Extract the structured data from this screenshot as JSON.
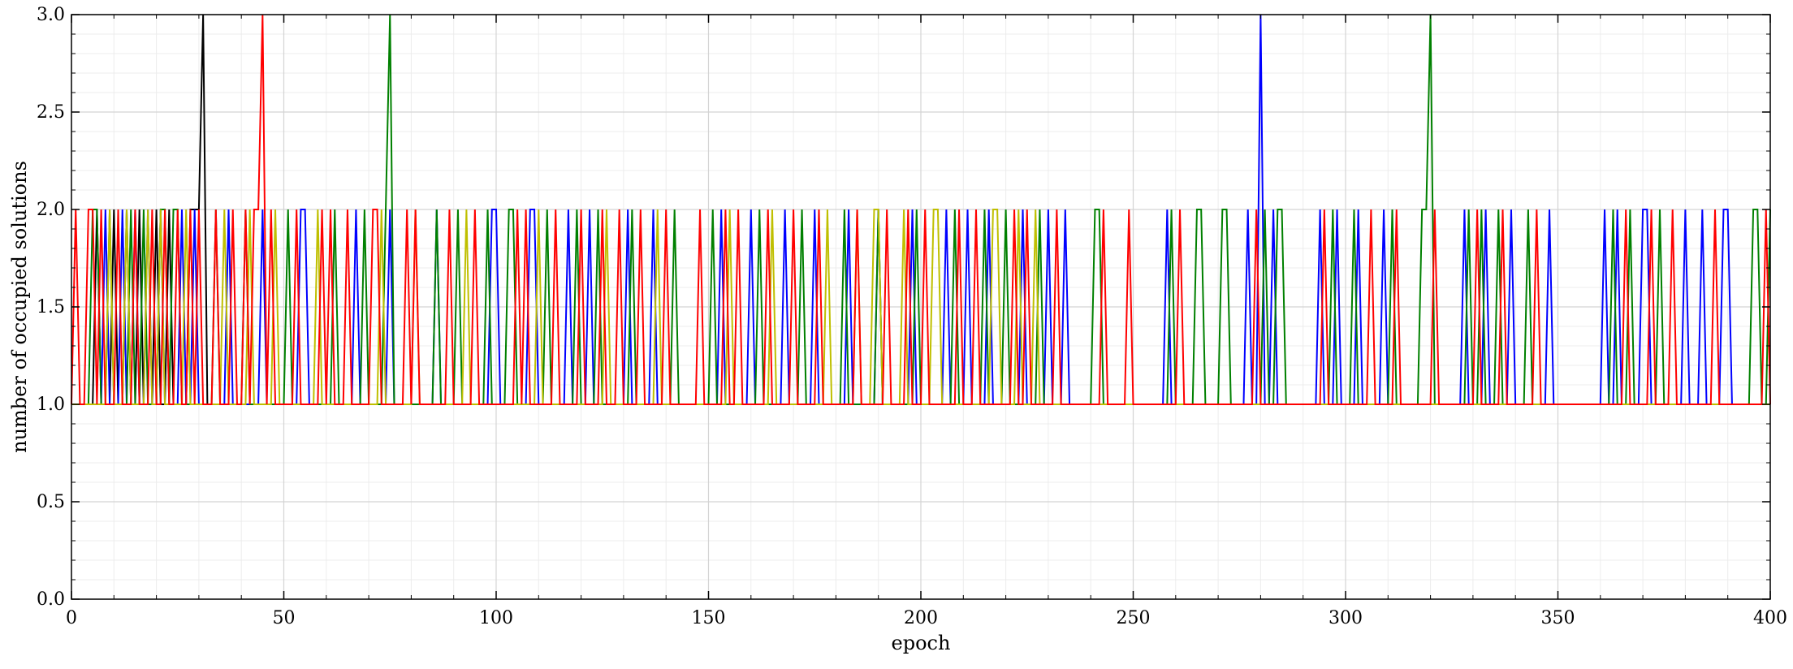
{
  "chart_data": {
    "type": "line",
    "title": "",
    "xlabel": "epoch",
    "ylabel": "number of occupied solutions",
    "xlim": [
      0,
      400
    ],
    "ylim": [
      0.0,
      3.0
    ],
    "grid": true,
    "x_ticks": [
      0,
      50,
      100,
      150,
      200,
      250,
      300,
      350,
      400
    ],
    "x_tick_labels": [
      "0",
      "50",
      "100",
      "150",
      "200",
      "250",
      "300",
      "350",
      "400"
    ],
    "y_ticks": [
      0.0,
      0.5,
      1.0,
      1.5,
      2.0,
      2.5,
      3.0
    ],
    "y_tick_labels": [
      "0.0",
      "0.5",
      "1.0",
      "1.5",
      "2.0",
      "2.5",
      "3.0"
    ],
    "series": [
      {
        "color": "#000000",
        "spans2": [
          [
            6,
            6
          ],
          [
            10,
            10
          ],
          [
            13,
            13
          ],
          [
            16,
            16
          ],
          [
            20,
            20
          ],
          [
            23,
            23
          ],
          [
            28,
            30
          ]
        ],
        "spans3": [
          [
            31,
            31
          ]
        ]
      },
      {
        "color": "#0000ff",
        "spans2": [
          [
            8,
            8
          ],
          [
            12,
            12
          ],
          [
            15,
            15
          ],
          [
            18,
            18
          ],
          [
            21,
            21
          ],
          [
            26,
            26
          ],
          [
            29,
            29
          ],
          [
            37,
            37
          ],
          [
            45,
            45
          ],
          [
            54,
            55
          ],
          [
            67,
            67
          ],
          [
            75,
            75
          ],
          [
            86,
            86
          ],
          [
            99,
            100
          ],
          [
            108,
            109
          ],
          [
            117,
            117
          ],
          [
            122,
            122
          ],
          [
            131,
            131
          ],
          [
            137,
            137
          ],
          [
            153,
            153
          ],
          [
            160,
            160
          ],
          [
            168,
            168
          ],
          [
            175,
            175
          ],
          [
            183,
            183
          ],
          [
            190,
            190
          ],
          [
            198,
            198
          ],
          [
            206,
            206
          ],
          [
            211,
            211
          ],
          [
            216,
            216
          ],
          [
            224,
            224
          ],
          [
            230,
            230
          ],
          [
            234,
            234
          ],
          [
            258,
            258
          ],
          [
            277,
            277
          ],
          [
            283,
            283
          ],
          [
            294,
            294
          ],
          [
            298,
            298
          ],
          [
            303,
            303
          ],
          [
            309,
            309
          ],
          [
            328,
            328
          ],
          [
            333,
            333
          ],
          [
            339,
            339
          ],
          [
            348,
            348
          ],
          [
            361,
            361
          ],
          [
            364,
            364
          ],
          [
            370,
            371
          ],
          [
            380,
            380
          ],
          [
            384,
            384
          ],
          [
            389,
            390
          ]
        ],
        "spans3": [
          [
            280,
            280
          ]
        ]
      },
      {
        "color": "#008000",
        "spans2": [
          [
            5,
            6
          ],
          [
            9,
            9
          ],
          [
            14,
            14
          ],
          [
            17,
            17
          ],
          [
            21,
            22
          ],
          [
            24,
            25
          ],
          [
            34,
            34
          ],
          [
            41,
            41
          ],
          [
            51,
            51
          ],
          [
            62,
            62
          ],
          [
            69,
            69
          ],
          [
            74,
            74
          ],
          [
            86,
            86
          ],
          [
            91,
            91
          ],
          [
            98,
            98
          ],
          [
            103,
            104
          ],
          [
            112,
            112
          ],
          [
            119,
            119
          ],
          [
            124,
            124
          ],
          [
            132,
            132
          ],
          [
            142,
            142
          ],
          [
            151,
            151
          ],
          [
            162,
            162
          ],
          [
            172,
            172
          ],
          [
            182,
            182
          ],
          [
            190,
            190
          ],
          [
            199,
            199
          ],
          [
            208,
            208
          ],
          [
            215,
            215
          ],
          [
            220,
            220
          ],
          [
            228,
            228
          ],
          [
            241,
            242
          ],
          [
            259,
            259
          ],
          [
            265,
            266
          ],
          [
            271,
            272
          ],
          [
            281,
            281
          ],
          [
            284,
            285
          ],
          [
            297,
            297
          ],
          [
            302,
            302
          ],
          [
            311,
            311
          ],
          [
            318,
            319
          ],
          [
            329,
            329
          ],
          [
            332,
            332
          ],
          [
            336,
            336
          ],
          [
            343,
            343
          ],
          [
            363,
            363
          ],
          [
            367,
            367
          ],
          [
            374,
            374
          ],
          [
            396,
            397
          ],
          [
            400,
            400
          ]
        ],
        "spans3": [
          [
            75,
            75
          ],
          [
            320,
            320
          ]
        ]
      },
      {
        "color": "#bfbf00",
        "spans2": [
          [
            9,
            9
          ],
          [
            13,
            13
          ],
          [
            18,
            18
          ],
          [
            21,
            21
          ],
          [
            27,
            27
          ],
          [
            36,
            36
          ],
          [
            42,
            42
          ],
          [
            48,
            48
          ],
          [
            58,
            58
          ],
          [
            73,
            73
          ],
          [
            81,
            81
          ],
          [
            93,
            93
          ],
          [
            110,
            110
          ],
          [
            126,
            126
          ],
          [
            138,
            138
          ],
          [
            155,
            155
          ],
          [
            165,
            165
          ],
          [
            178,
            178
          ],
          [
            185,
            185
          ],
          [
            189,
            190
          ],
          [
            196,
            196
          ],
          [
            203,
            204
          ],
          [
            217,
            218
          ],
          [
            223,
            223
          ],
          [
            227,
            227
          ]
        ],
        "spans3": []
      },
      {
        "color": "#ff0000",
        "spans2": [
          [
            1,
            1
          ],
          [
            4,
            5
          ],
          [
            7,
            7
          ],
          [
            11,
            11
          ],
          [
            15,
            15
          ],
          [
            19,
            19
          ],
          [
            22,
            22
          ],
          [
            25,
            25
          ],
          [
            28,
            28
          ],
          [
            30,
            30
          ],
          [
            34,
            34
          ],
          [
            38,
            38
          ],
          [
            41,
            41
          ],
          [
            43,
            44
          ],
          [
            47,
            47
          ],
          [
            53,
            53
          ],
          [
            59,
            59
          ],
          [
            61,
            61
          ],
          [
            65,
            65
          ],
          [
            71,
            72
          ],
          [
            79,
            79
          ],
          [
            81,
            81
          ],
          [
            89,
            89
          ],
          [
            95,
            95
          ],
          [
            105,
            105
          ],
          [
            107,
            107
          ],
          [
            114,
            114
          ],
          [
            120,
            120
          ],
          [
            125,
            125
          ],
          [
            129,
            129
          ],
          [
            134,
            134
          ],
          [
            140,
            140
          ],
          [
            148,
            148
          ],
          [
            154,
            154
          ],
          [
            157,
            157
          ],
          [
            164,
            164
          ],
          [
            170,
            170
          ],
          [
            176,
            176
          ],
          [
            185,
            185
          ],
          [
            192,
            192
          ],
          [
            197,
            197
          ],
          [
            201,
            201
          ],
          [
            209,
            209
          ],
          [
            213,
            213
          ],
          [
            222,
            222
          ],
          [
            225,
            225
          ],
          [
            232,
            232
          ],
          [
            243,
            243
          ],
          [
            249,
            249
          ],
          [
            261,
            261
          ],
          [
            279,
            279
          ],
          [
            295,
            295
          ],
          [
            306,
            306
          ],
          [
            312,
            312
          ],
          [
            321,
            321
          ],
          [
            331,
            331
          ],
          [
            337,
            337
          ],
          [
            345,
            345
          ],
          [
            366,
            366
          ],
          [
            372,
            372
          ],
          [
            377,
            377
          ],
          [
            387,
            387
          ],
          [
            399,
            399
          ]
        ],
        "spans3": [
          [
            45,
            45
          ]
        ]
      }
    ]
  }
}
